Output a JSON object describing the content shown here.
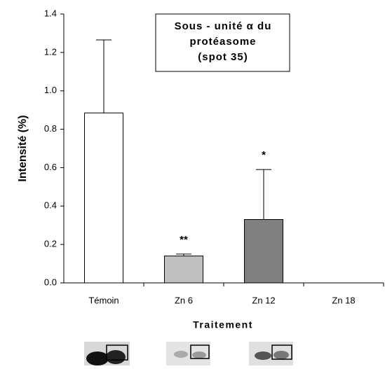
{
  "chart_data": {
    "type": "bar",
    "title_lines": [
      "Sous - unité α du",
      "protéasome",
      "(spot 35)"
    ],
    "y_label": "Intensité (%)",
    "x_label": "Traitement",
    "categories": [
      "Témoin",
      "Zn 6",
      "Zn 12",
      "Zn 18"
    ],
    "values": [
      0.885,
      0.14,
      0.33,
      0
    ],
    "errors": [
      0.38,
      0.01,
      0.26,
      0
    ],
    "colors": [
      "#ffffff",
      "#c0c0c0",
      "#808080",
      "#808080"
    ],
    "significance": [
      null,
      "**",
      "*",
      null
    ],
    "ylim": [
      0,
      1.4
    ],
    "yticks": [
      {
        "value": 0,
        "label": "0.0"
      },
      0.2,
      0.4,
      0.6,
      0.8,
      {
        "value": 1,
        "label": "1.0"
      },
      1.2,
      1.4
    ]
  }
}
